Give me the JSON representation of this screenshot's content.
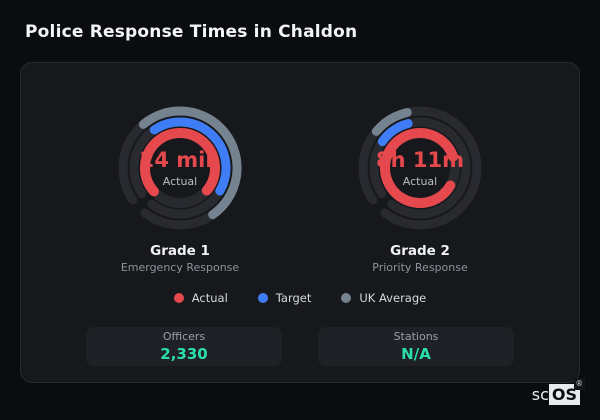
{
  "page": {
    "title": "Police Response Times in Chaldon"
  },
  "theme": {
    "page_bg": "#0b0c0f",
    "card_bg": "#17181c",
    "card_border": "#272930",
    "stat_box_bg": "#1f2127",
    "accent_red": "#e5484d",
    "accent_blue": "#3f7df6",
    "accent_gray": "#75828f",
    "accent_teal": "#2ae0a9",
    "text_primary": "#f2f4f6",
    "text_muted": "#8e949c"
  },
  "chart_data": {
    "type": "donut-gauge-pair",
    "angle_convention": "degrees, 0 = east (3 o'clock), increasing clockwise on screen",
    "track_color": "#282a30",
    "track_start_deg": 146,
    "track_sweep_deg": 342,
    "legend_position": "bottom",
    "legend": [
      {
        "label": "Actual",
        "color": "#e5484d"
      },
      {
        "label": "Target",
        "color": "#3f7df6"
      },
      {
        "label": "UK Average",
        "color": "#75828f"
      }
    ],
    "gauges": [
      {
        "id": "grade-1",
        "title": "Grade 1",
        "subtitle": "Emergency Response",
        "center_value": "24 min",
        "center_label": "Actual",
        "rings": [
          {
            "name": "uk-average",
            "color": "#75828f",
            "radius": 57,
            "width": 9,
            "start_deg": 230,
            "sweep_deg": 185
          },
          {
            "name": "target",
            "color": "#3f7df6",
            "radius": 46,
            "width": 9,
            "start_deg": 236,
            "sweep_deg": 154
          },
          {
            "name": "actual",
            "color": "#e5484d",
            "radius": 35,
            "width": 10,
            "start_deg": 138,
            "sweep_deg": 262
          }
        ]
      },
      {
        "id": "grade-2",
        "title": "Grade 2",
        "subtitle": "Priority Response",
        "center_value": "8h 11m",
        "center_label": "Actual",
        "rings": [
          {
            "name": "uk-average",
            "color": "#75828f",
            "radius": 57,
            "width": 9,
            "start_deg": 220,
            "sweep_deg": 37
          },
          {
            "name": "target",
            "color": "#3f7df6",
            "radius": 46,
            "width": 9,
            "start_deg": 215,
            "sweep_deg": 40
          },
          {
            "name": "actual",
            "color": "#e5484d",
            "radius": 35,
            "width": 10,
            "start_deg": 30,
            "sweep_deg": 311
          }
        ]
      }
    ]
  },
  "stats": [
    {
      "label": "Officers",
      "value": "2,330"
    },
    {
      "label": "Stations",
      "value": "N/A"
    }
  ],
  "logo": {
    "prefix": "sc",
    "suffix": "OS",
    "mark": "®"
  }
}
